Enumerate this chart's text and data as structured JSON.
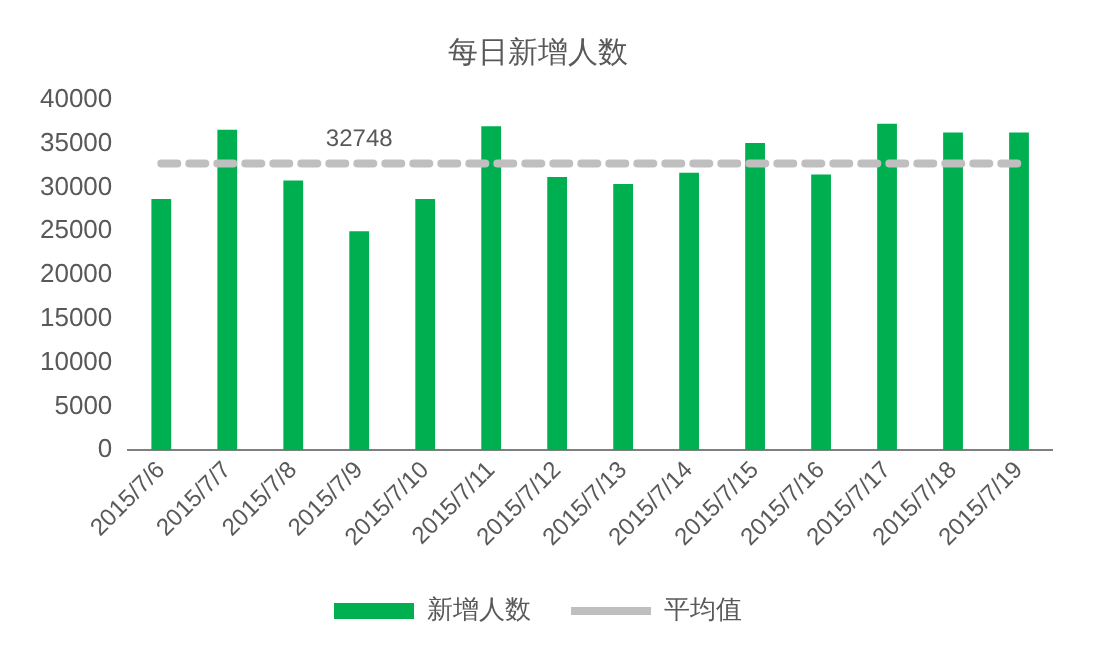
{
  "chart_data": {
    "type": "bar",
    "title": "每日新增人数",
    "categories": [
      "2015/7/6",
      "2015/7/7",
      "2015/7/8",
      "2015/7/9",
      "2015/7/10",
      "2015/7/11",
      "2015/7/12",
      "2015/7/13",
      "2015/7/14",
      "2015/7/15",
      "2015/7/16",
      "2015/7/17",
      "2015/7/18",
      "2015/7/19"
    ],
    "series": [
      {
        "name": "新增人数",
        "color": "#00b050",
        "values": [
          28700,
          36600,
          30800,
          25000,
          28700,
          37000,
          31200,
          30400,
          31700,
          35100,
          31500,
          37300,
          36300,
          36300
        ]
      },
      {
        "name": "平均值",
        "type": "line",
        "color": "#bfbfbf",
        "line_style": "dashed",
        "marker": "none",
        "values": [
          32748,
          32748,
          32748,
          32748,
          32748,
          32748,
          32748,
          32748,
          32748,
          32748,
          32748,
          32748,
          32748,
          32748
        ],
        "value_labels": [
          null,
          null,
          null,
          "32748",
          null,
          null,
          null,
          null,
          null,
          null,
          null,
          null,
          null,
          null
        ]
      }
    ],
    "ylim": [
      0,
      40000
    ],
    "yticks": [
      0,
      5000,
      10000,
      15000,
      20000,
      25000,
      30000,
      35000,
      40000
    ],
    "grid": false,
    "legend": "bottom"
  }
}
